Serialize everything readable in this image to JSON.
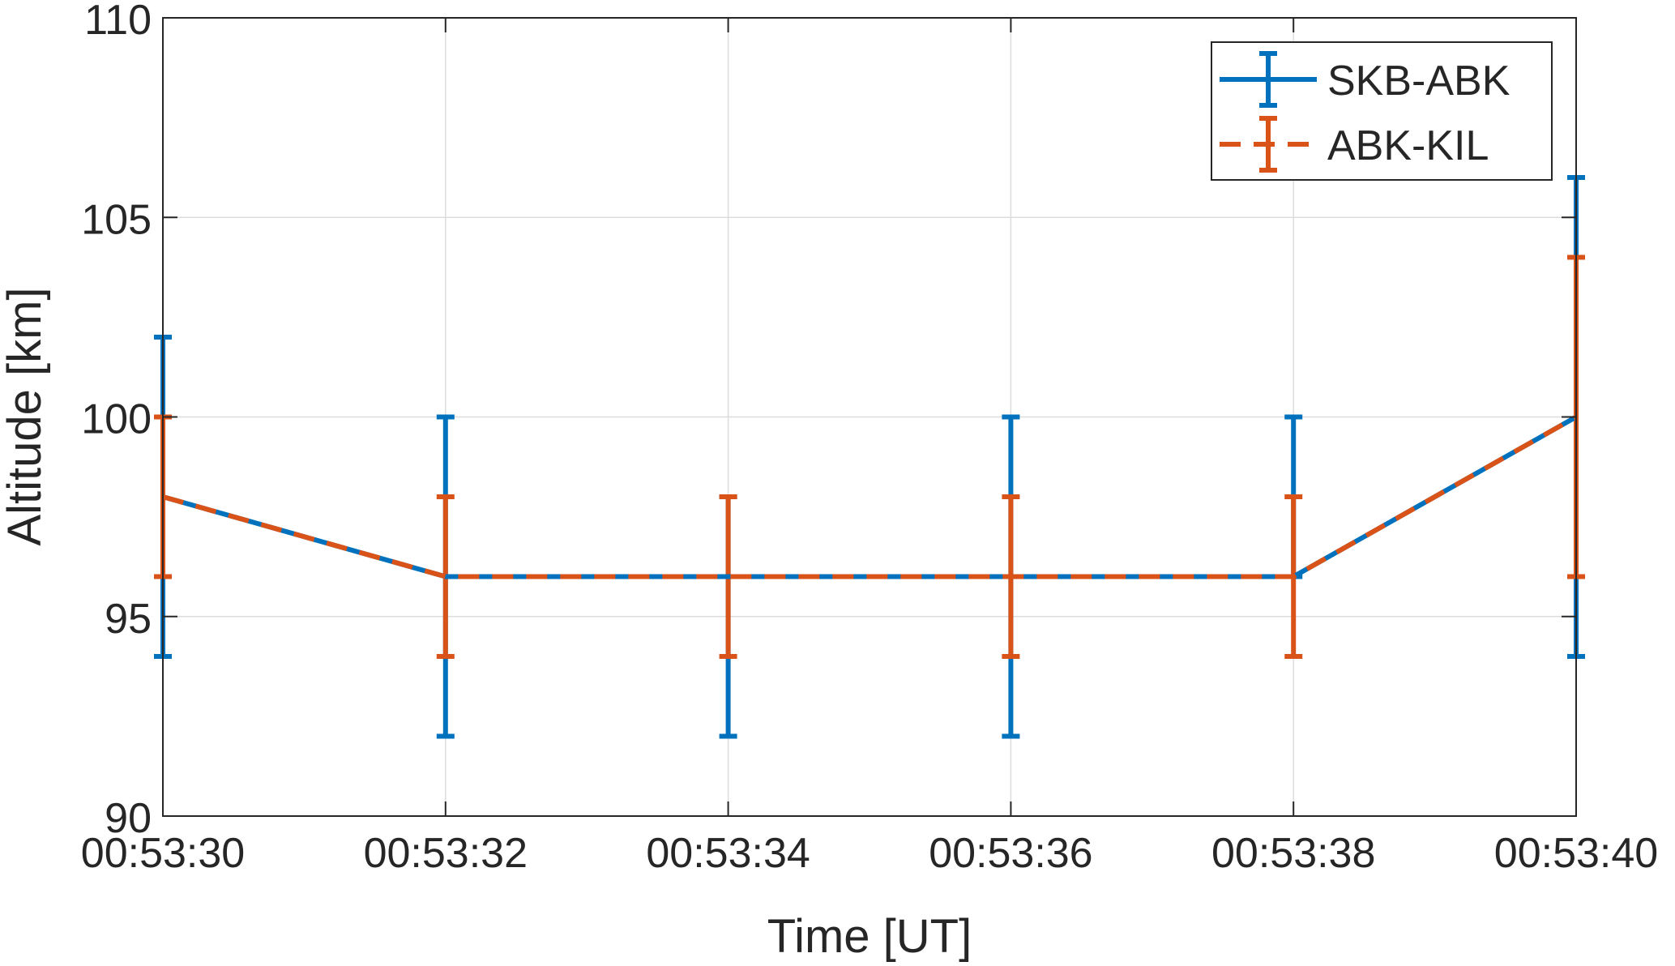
{
  "chart_data": {
    "type": "line",
    "subtype": "errorbar",
    "title": "",
    "xlabel": "Time [UT]",
    "ylabel": "Altitude [km]",
    "x": [
      "00:53:30",
      "00:53:32",
      "00:53:34",
      "00:53:36",
      "00:53:38",
      "00:53:40"
    ],
    "x_seconds": [
      0,
      2,
      4,
      6,
      8,
      10
    ],
    "xlim": [
      0,
      10
    ],
    "ylim": [
      90,
      110
    ],
    "xticks": [
      "00:53:30",
      "00:53:32",
      "00:53:34",
      "00:53:36",
      "00:53:38",
      "00:53:40"
    ],
    "yticks": [
      90,
      95,
      100,
      105,
      110
    ],
    "grid": true,
    "legend_position": "top-right",
    "series": [
      {
        "name": "SKB-ABK",
        "color": "#0072BD",
        "line_style": "solid",
        "values": [
          98,
          96,
          96,
          96,
          96,
          100
        ],
        "lower": [
          94,
          92,
          92,
          92,
          96,
          94
        ],
        "upper": [
          102,
          100,
          98,
          100,
          100,
          106
        ]
      },
      {
        "name": "ABK-KIL",
        "color": "#D95319",
        "line_style": "dashed",
        "values": [
          98,
          96,
          96,
          96,
          96,
          100
        ],
        "lower": [
          96,
          94,
          94,
          94,
          94,
          96
        ],
        "upper": [
          100,
          98,
          98,
          98,
          98,
          104
        ]
      }
    ]
  }
}
